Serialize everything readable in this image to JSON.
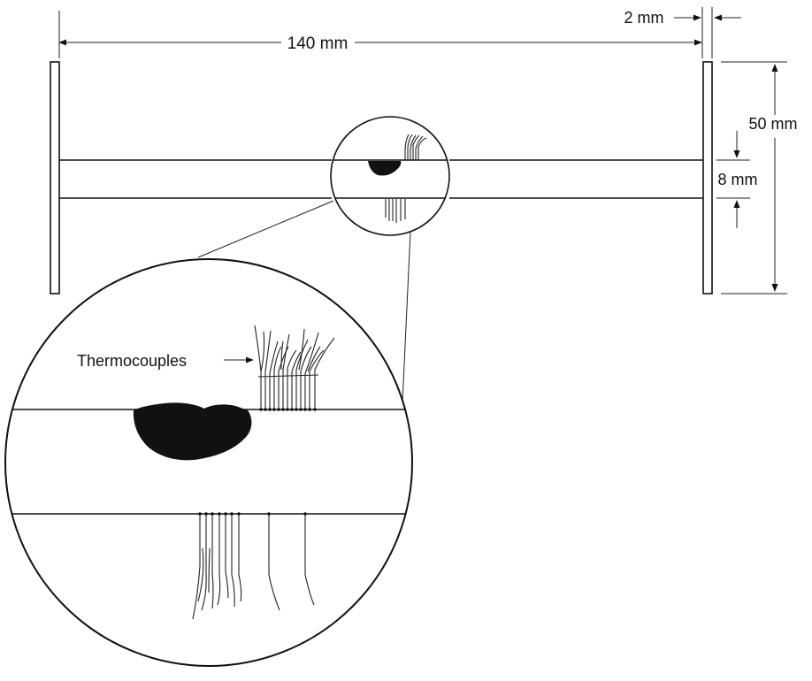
{
  "labels": {
    "overall_width": "140 mm",
    "flange_thickness": "2 mm",
    "flange_height": "50 mm",
    "web_thickness": "8 mm",
    "thermocouples": "Thermocouples"
  },
  "colors": {
    "ink": "#111111",
    "background": "#ffffff"
  }
}
